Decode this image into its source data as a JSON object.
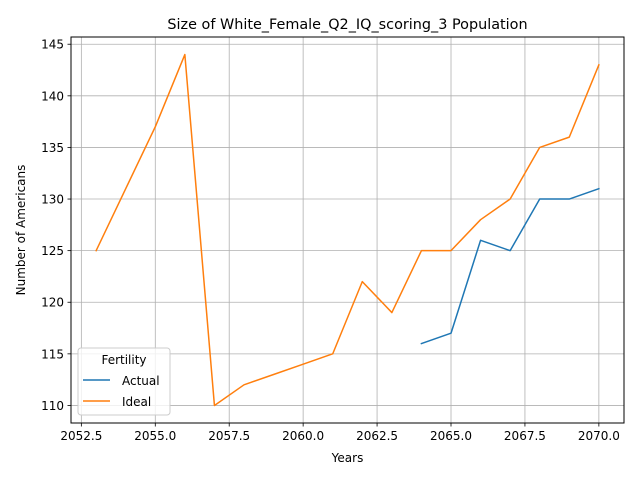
{
  "chart_data": {
    "type": "line",
    "title": "Size of White_Female_Q2_IQ_scoring_3 Population",
    "xlabel": "Years",
    "ylabel": "Number of Americans",
    "xlim": [
      2052.15,
      2070.85
    ],
    "ylim": [
      108.3,
      145.7
    ],
    "x_ticks": [
      2052.5,
      2055,
      2057.5,
      2060,
      2062.5,
      2065,
      2067.5,
      2070
    ],
    "x_tick_labels": [
      "2052.5",
      "2055.0",
      "2057.5",
      "2060.0",
      "2062.5",
      "2065.0",
      "2067.5",
      "2070.0"
    ],
    "y_ticks": [
      110,
      115,
      120,
      125,
      130,
      135,
      140,
      145
    ],
    "y_tick_labels": [
      "110",
      "115",
      "120",
      "125",
      "130",
      "135",
      "140",
      "145"
    ],
    "grid": true,
    "legend": {
      "title": "Fertility",
      "placement": "lower-left"
    },
    "series": [
      {
        "name": "Actual",
        "color": "#1f77b4",
        "x": [
          2064,
          2065,
          2066,
          2067,
          2068,
          2069,
          2070
        ],
        "y": [
          116,
          117,
          126,
          125,
          130,
          130,
          131
        ]
      },
      {
        "name": "Ideal",
        "color": "#ff7f0e",
        "x": [
          2053,
          2054,
          2055,
          2056,
          2057,
          2058,
          2059,
          2060,
          2061,
          2062,
          2063,
          2064,
          2065,
          2066,
          2067,
          2068,
          2069,
          2070
        ],
        "y": [
          125,
          131,
          137,
          144,
          110,
          112,
          113,
          114,
          115,
          122,
          119,
          125,
          125,
          128,
          130,
          135,
          136,
          143
        ]
      }
    ]
  }
}
